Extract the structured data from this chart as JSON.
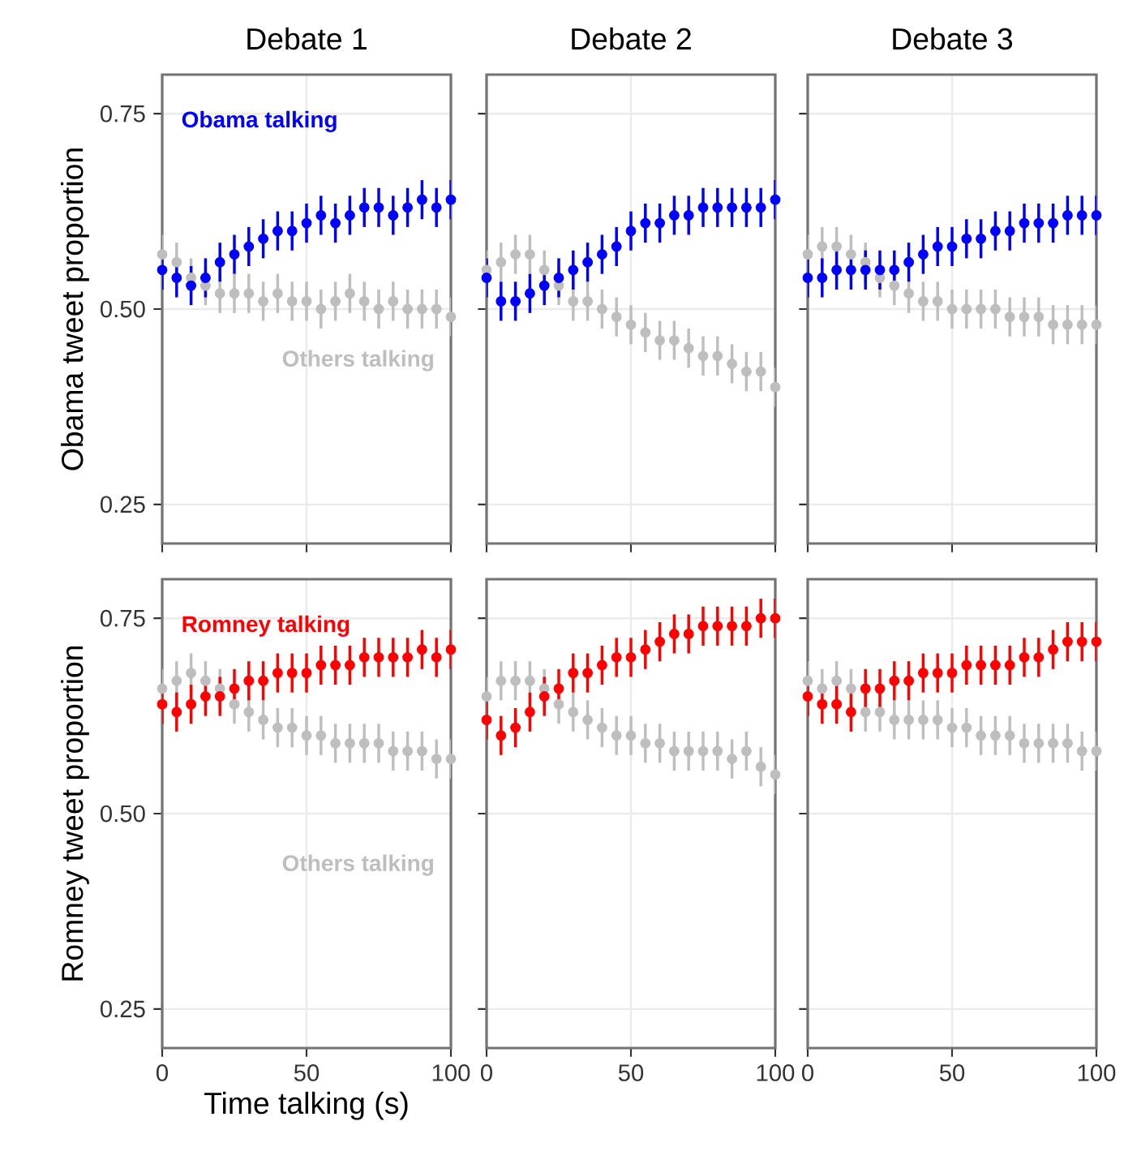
{
  "chart_data": [
    {
      "type": "scatter",
      "title": "Debate 1",
      "ylabel": "Obama tweet proportion",
      "x": [
        0,
        5,
        10,
        15,
        20,
        25,
        30,
        35,
        40,
        45,
        50,
        55,
        60,
        65,
        70,
        75,
        80,
        85,
        90,
        95,
        100
      ],
      "xlim": [
        0,
        100
      ],
      "ylim": [
        0.2,
        0.8
      ],
      "xticks": [
        0,
        50,
        100
      ],
      "yticks": [
        0.25,
        {
          "value": 0.5,
          "label": "0.50"
        },
        0.75
      ],
      "grid": true,
      "marker": "circle",
      "tick_labels": "y",
      "series": [
        {
          "name": "Others talking",
          "color": "#bebebe",
          "values": [
            0.57,
            0.56,
            0.54,
            0.53,
            0.52,
            0.52,
            0.52,
            0.51,
            0.52,
            0.51,
            0.51,
            0.5,
            0.51,
            0.52,
            0.51,
            0.5,
            0.51,
            0.5,
            0.5,
            0.5,
            0.49
          ],
          "errors": [
            0.025,
            0.025,
            0.025,
            0.025,
            0.025,
            0.025,
            0.025,
            0.025,
            0.025,
            0.025,
            0.025,
            0.025,
            0.025,
            0.025,
            0.025,
            0.025,
            0.025,
            0.025,
            0.025,
            0.025,
            0.025
          ]
        },
        {
          "name": "Obama talking",
          "color": "#0000ff",
          "values": [
            0.55,
            0.54,
            0.53,
            0.54,
            0.56,
            0.57,
            0.58,
            0.59,
            0.6,
            0.6,
            0.61,
            0.62,
            0.61,
            0.62,
            0.63,
            0.63,
            0.62,
            0.63,
            0.64,
            0.63,
            0.64
          ],
          "errors": [
            0.025,
            0.025,
            0.025,
            0.025,
            0.025,
            0.025,
            0.025,
            0.025,
            0.025,
            0.025,
            0.025,
            0.025,
            0.025,
            0.025,
            0.025,
            0.025,
            0.025,
            0.025,
            0.025,
            0.025,
            0.025
          ]
        }
      ]
    },
    {
      "type": "scatter",
      "title": "Debate 2",
      "x": [
        0,
        5,
        10,
        15,
        20,
        25,
        30,
        35,
        40,
        45,
        50,
        55,
        60,
        65,
        70,
        75,
        80,
        85,
        90,
        95,
        100
      ],
      "xlim": [
        0,
        100
      ],
      "ylim": [
        0.2,
        0.8
      ],
      "xticks": [
        0,
        50,
        100
      ],
      "yticks": [
        0.25,
        0.5,
        0.75
      ],
      "grid": true,
      "marker": "circle",
      "tick_labels": false,
      "series": [
        {
          "color": "#bebebe",
          "values": [
            0.55,
            0.56,
            0.57,
            0.57,
            0.55,
            0.53,
            0.51,
            0.51,
            0.5,
            0.49,
            0.48,
            0.47,
            0.46,
            0.46,
            0.45,
            0.44,
            0.44,
            0.43,
            0.42,
            0.42,
            0.4
          ],
          "errors": [
            0.025,
            0.025,
            0.025,
            0.025,
            0.025,
            0.025,
            0.025,
            0.025,
            0.025,
            0.025,
            0.025,
            0.025,
            0.025,
            0.025,
            0.025,
            0.025,
            0.025,
            0.025,
            0.025,
            0.025,
            0.025
          ]
        },
        {
          "color": "#0000ff",
          "values": [
            0.54,
            0.51,
            0.51,
            0.52,
            0.53,
            0.54,
            0.55,
            0.56,
            0.57,
            0.58,
            0.6,
            0.61,
            0.61,
            0.62,
            0.62,
            0.63,
            0.63,
            0.63,
            0.63,
            0.63,
            0.64
          ],
          "errors": [
            0.025,
            0.025,
            0.025,
            0.025,
            0.025,
            0.025,
            0.025,
            0.025,
            0.025,
            0.025,
            0.025,
            0.025,
            0.025,
            0.025,
            0.025,
            0.025,
            0.025,
            0.025,
            0.025,
            0.025,
            0.025
          ]
        }
      ]
    },
    {
      "type": "scatter",
      "title": "Debate 3",
      "x": [
        0,
        5,
        10,
        15,
        20,
        25,
        30,
        35,
        40,
        45,
        50,
        55,
        60,
        65,
        70,
        75,
        80,
        85,
        90,
        95,
        100
      ],
      "xlim": [
        0,
        100
      ],
      "ylim": [
        0.2,
        0.8
      ],
      "xticks": [
        0,
        50,
        100
      ],
      "yticks": [
        0.25,
        0.5,
        0.75
      ],
      "grid": true,
      "marker": "circle",
      "tick_labels": false,
      "series": [
        {
          "color": "#bebebe",
          "values": [
            0.57,
            0.58,
            0.58,
            0.57,
            0.56,
            0.54,
            0.53,
            0.52,
            0.51,
            0.51,
            0.5,
            0.5,
            0.5,
            0.5,
            0.49,
            0.49,
            0.49,
            0.48,
            0.48,
            0.48,
            0.48
          ],
          "errors": [
            0.025,
            0.025,
            0.025,
            0.025,
            0.025,
            0.025,
            0.025,
            0.025,
            0.025,
            0.025,
            0.025,
            0.025,
            0.025,
            0.025,
            0.025,
            0.025,
            0.025,
            0.025,
            0.025,
            0.025,
            0.025
          ]
        },
        {
          "color": "#0000ff",
          "values": [
            0.54,
            0.54,
            0.55,
            0.55,
            0.55,
            0.55,
            0.55,
            0.56,
            0.57,
            0.58,
            0.58,
            0.59,
            0.59,
            0.6,
            0.6,
            0.61,
            0.61,
            0.61,
            0.62,
            0.62,
            0.62
          ],
          "errors": [
            0.025,
            0.025,
            0.025,
            0.025,
            0.025,
            0.025,
            0.025,
            0.025,
            0.025,
            0.025,
            0.025,
            0.025,
            0.025,
            0.025,
            0.025,
            0.025,
            0.025,
            0.025,
            0.025,
            0.025,
            0.025
          ]
        }
      ]
    },
    {
      "type": "scatter",
      "xlabel": "Time talking (s)",
      "ylabel": "Romney tweet proportion",
      "x": [
        0,
        5,
        10,
        15,
        20,
        25,
        30,
        35,
        40,
        45,
        50,
        55,
        60,
        65,
        70,
        75,
        80,
        85,
        90,
        95,
        100
      ],
      "xlim": [
        0,
        100
      ],
      "ylim": [
        0.2,
        0.8
      ],
      "xticks": [
        0,
        50,
        100
      ],
      "yticks": [
        0.25,
        {
          "value": 0.5,
          "label": "0.50"
        },
        0.75
      ],
      "grid": true,
      "marker": "circle",
      "series": [
        {
          "name": "Others talking",
          "color": "#bebebe",
          "values": [
            0.66,
            0.67,
            0.68,
            0.67,
            0.66,
            0.64,
            0.63,
            0.62,
            0.61,
            0.61,
            0.6,
            0.6,
            0.59,
            0.59,
            0.59,
            0.59,
            0.58,
            0.58,
            0.58,
            0.57,
            0.57
          ],
          "errors": [
            0.025,
            0.025,
            0.025,
            0.025,
            0.025,
            0.025,
            0.025,
            0.025,
            0.025,
            0.025,
            0.025,
            0.025,
            0.025,
            0.025,
            0.025,
            0.025,
            0.025,
            0.025,
            0.025,
            0.025,
            0.025
          ]
        },
        {
          "name": "Romney talking",
          "color": "#ff0000",
          "values": [
            0.64,
            0.63,
            0.64,
            0.65,
            0.65,
            0.66,
            0.67,
            0.67,
            0.68,
            0.68,
            0.68,
            0.69,
            0.69,
            0.69,
            0.7,
            0.7,
            0.7,
            0.7,
            0.71,
            0.7,
            0.71
          ],
          "errors": [
            0.025,
            0.025,
            0.025,
            0.025,
            0.025,
            0.025,
            0.025,
            0.025,
            0.025,
            0.025,
            0.025,
            0.025,
            0.025,
            0.025,
            0.025,
            0.025,
            0.025,
            0.025,
            0.025,
            0.025,
            0.025
          ]
        }
      ]
    },
    {
      "type": "scatter",
      "x": [
        0,
        5,
        10,
        15,
        20,
        25,
        30,
        35,
        40,
        45,
        50,
        55,
        60,
        65,
        70,
        75,
        80,
        85,
        90,
        95,
        100
      ],
      "xlim": [
        0,
        100
      ],
      "ylim": [
        0.2,
        0.8
      ],
      "xticks": [
        0,
        50,
        100
      ],
      "yticks": [
        0.25,
        0.5,
        0.75
      ],
      "grid": true,
      "marker": "circle",
      "tick_labels": "x",
      "series": [
        {
          "color": "#bebebe",
          "values": [
            0.65,
            0.67,
            0.67,
            0.67,
            0.66,
            0.64,
            0.63,
            0.62,
            0.61,
            0.6,
            0.6,
            0.59,
            0.59,
            0.58,
            0.58,
            0.58,
            0.58,
            0.57,
            0.58,
            0.56,
            0.55
          ],
          "errors": [
            0.025,
            0.025,
            0.025,
            0.025,
            0.025,
            0.025,
            0.025,
            0.025,
            0.025,
            0.025,
            0.025,
            0.025,
            0.025,
            0.025,
            0.025,
            0.025,
            0.025,
            0.025,
            0.025,
            0.025,
            0.025
          ]
        },
        {
          "color": "#ff0000",
          "values": [
            0.62,
            0.6,
            0.61,
            0.63,
            0.65,
            0.66,
            0.68,
            0.68,
            0.69,
            0.7,
            0.7,
            0.71,
            0.72,
            0.73,
            0.73,
            0.74,
            0.74,
            0.74,
            0.74,
            0.75,
            0.75
          ],
          "errors": [
            0.025,
            0.025,
            0.025,
            0.025,
            0.025,
            0.025,
            0.025,
            0.025,
            0.025,
            0.025,
            0.025,
            0.025,
            0.025,
            0.025,
            0.025,
            0.025,
            0.025,
            0.025,
            0.025,
            0.025,
            0.025
          ]
        }
      ]
    },
    {
      "type": "scatter",
      "x": [
        0,
        5,
        10,
        15,
        20,
        25,
        30,
        35,
        40,
        45,
        50,
        55,
        60,
        65,
        70,
        75,
        80,
        85,
        90,
        95,
        100
      ],
      "xlim": [
        0,
        100
      ],
      "ylim": [
        0.2,
        0.8
      ],
      "xticks": [
        0,
        50,
        100
      ],
      "yticks": [
        0.25,
        0.5,
        0.75
      ],
      "grid": true,
      "marker": "circle",
      "tick_labels": "x",
      "series": [
        {
          "color": "#bebebe",
          "values": [
            0.67,
            0.66,
            0.67,
            0.66,
            0.63,
            0.63,
            0.62,
            0.62,
            0.62,
            0.62,
            0.61,
            0.61,
            0.6,
            0.6,
            0.6,
            0.59,
            0.59,
            0.59,
            0.59,
            0.58,
            0.58
          ],
          "errors": [
            0.025,
            0.025,
            0.025,
            0.025,
            0.025,
            0.025,
            0.025,
            0.025,
            0.025,
            0.025,
            0.025,
            0.025,
            0.025,
            0.025,
            0.025,
            0.025,
            0.025,
            0.025,
            0.025,
            0.025,
            0.025
          ]
        },
        {
          "color": "#ff0000",
          "values": [
            0.65,
            0.64,
            0.64,
            0.63,
            0.66,
            0.66,
            0.67,
            0.67,
            0.68,
            0.68,
            0.68,
            0.69,
            0.69,
            0.69,
            0.69,
            0.7,
            0.7,
            0.71,
            0.72,
            0.72,
            0.72
          ],
          "errors": [
            0.025,
            0.025,
            0.025,
            0.025,
            0.025,
            0.025,
            0.025,
            0.025,
            0.025,
            0.025,
            0.025,
            0.025,
            0.025,
            0.025,
            0.025,
            0.025,
            0.025,
            0.025,
            0.025,
            0.025,
            0.025
          ]
        }
      ]
    }
  ]
}
